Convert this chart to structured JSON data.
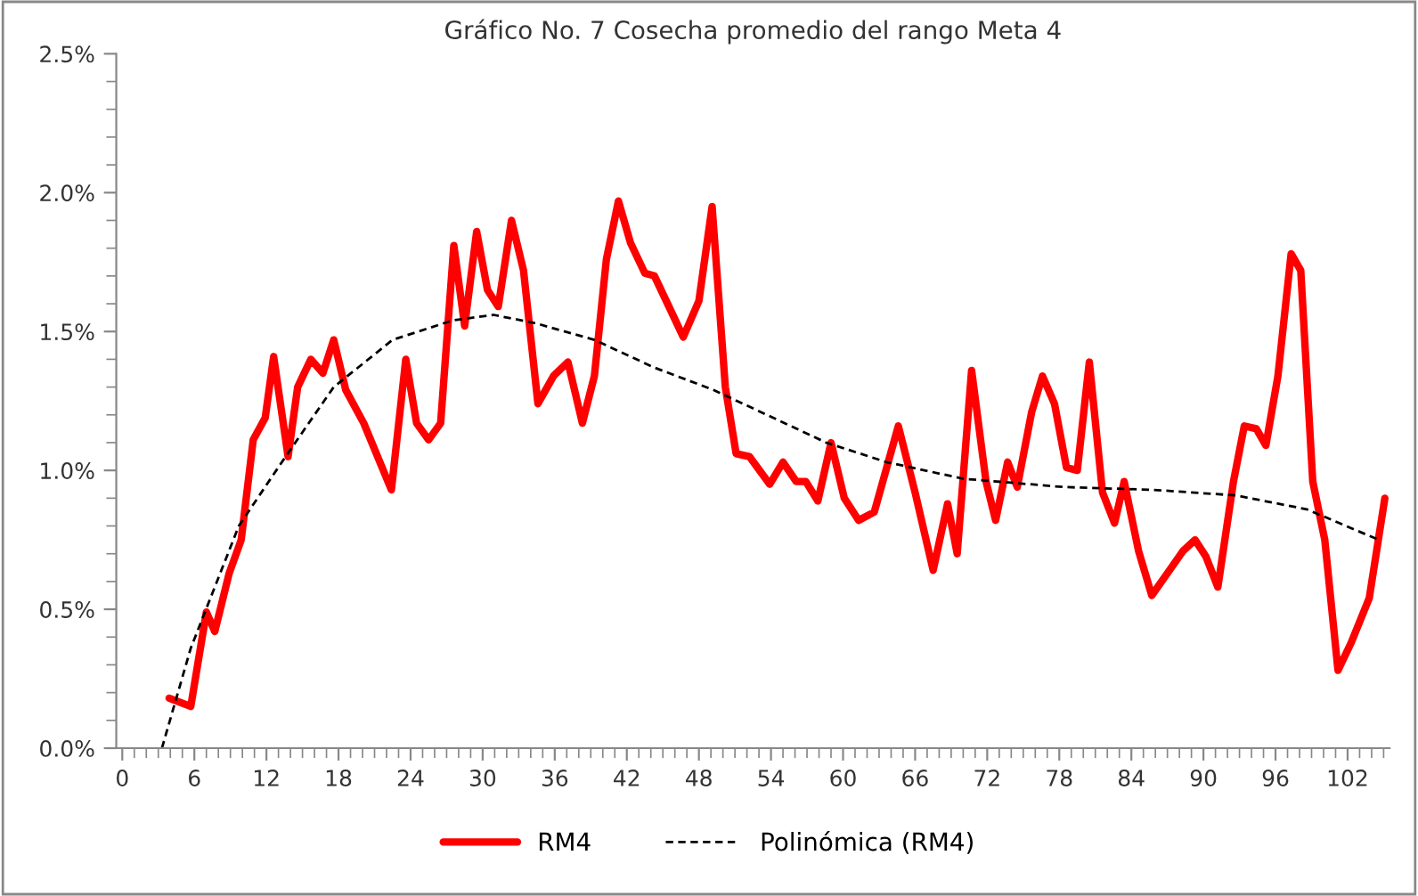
{
  "chart_data": {
    "type": "line",
    "title": "Gráfico No. 7 Cosecha promedio del rango Meta 4",
    "xlim": [
      -0.5,
      105.5
    ],
    "xticks": [
      0,
      6,
      12,
      18,
      24,
      30,
      36,
      42,
      48,
      54,
      60,
      66,
      72,
      78,
      84,
      90,
      96,
      102
    ],
    "ylim": [
      0,
      2.5
    ],
    "yticks": [
      {
        "value": 0,
        "label": "0.0%"
      },
      {
        "value": 0.5,
        "label": "0.5%"
      },
      {
        "value": 1,
        "label": "1.0%"
      },
      {
        "value": 1.5,
        "label": "1.5%"
      },
      {
        "value": 2,
        "label": "2.0%"
      },
      {
        "value": 2.5,
        "label": "2.5%"
      }
    ],
    "grid": false,
    "legend": "bottom",
    "marker": "none",
    "series": [
      {
        "name": "RM4",
        "color": "#ff0000",
        "line_style": "solid",
        "x": [
          3.9,
          5.7,
          7.0,
          7.7,
          8.9,
          9.9,
          10.9,
          11.9,
          12.6,
          13.8,
          14.6,
          15.7,
          16.7,
          17.6,
          18.6,
          20.1,
          22.4,
          23.6,
          24.5,
          25.5,
          26.5,
          27.6,
          28.5,
          29.5,
          30.4,
          31.3,
          32.4,
          33.4,
          34.6,
          35.9,
          37.1,
          38.3,
          39.3,
          40.3,
          41.3,
          42.3,
          43.5,
          44.3,
          45.5,
          46.7,
          48.0,
          49.1,
          50.2,
          51.1,
          52.2,
          53.9,
          55.0,
          56.1,
          56.9,
          57.9,
          59.0,
          60.1,
          61.3,
          62.6,
          64.6,
          66.0,
          67.5,
          68.7,
          69.5,
          70.7,
          71.9,
          72.7,
          73.7,
          74.5,
          75.7,
          76.6,
          77.6,
          78.6,
          79.5,
          80.5,
          81.6,
          82.6,
          83.4,
          84.6,
          85.7,
          87.0,
          88.3,
          89.3,
          90.2,
          91.2,
          92.5,
          93.4,
          94.4,
          95.2,
          96.2,
          97.3,
          98.1,
          99.1,
          100.1,
          101.2,
          102.3,
          103.8,
          105.1
        ],
        "values": [
          0.18,
          0.15,
          0.49,
          0.42,
          0.63,
          0.75,
          1.11,
          1.19,
          1.41,
          1.05,
          1.3,
          1.4,
          1.35,
          1.47,
          1.29,
          1.17,
          0.93,
          1.4,
          1.17,
          1.11,
          1.17,
          1.81,
          1.52,
          1.86,
          1.65,
          1.59,
          1.9,
          1.72,
          1.24,
          1.34,
          1.39,
          1.17,
          1.34,
          1.76,
          1.97,
          1.82,
          1.71,
          1.7,
          1.59,
          1.48,
          1.61,
          1.95,
          1.3,
          1.06,
          1.05,
          0.95,
          1.03,
          0.96,
          0.96,
          0.89,
          1.1,
          0.9,
          0.82,
          0.85,
          1.16,
          0.92,
          0.64,
          0.88,
          0.7,
          1.36,
          0.96,
          0.82,
          1.03,
          0.94,
          1.21,
          1.34,
          1.24,
          1.01,
          1.0,
          1.39,
          0.92,
          0.81,
          0.96,
          0.71,
          0.55,
          0.63,
          0.71,
          0.75,
          0.69,
          0.58,
          0.96,
          1.16,
          1.15,
          1.09,
          1.34,
          1.78,
          1.72,
          0.96,
          0.75,
          0.28,
          0.38,
          0.54,
          0.9
        ]
      },
      {
        "name": "Polinómica (RM4)",
        "color": "#000000",
        "line_style": "dashed",
        "x": [
          3.3,
          5.7,
          9.7,
          13.6,
          17.6,
          22.5,
          27.5,
          30.9,
          34.4,
          39.3,
          44.3,
          49.2,
          58.6,
          63.6,
          70.0,
          78.4,
          85.8,
          92.7,
          98.6,
          104.6
        ],
        "values": [
          0,
          0.36,
          0.8,
          1.05,
          1.3,
          1.47,
          1.54,
          1.56,
          1.53,
          1.47,
          1.37,
          1.29,
          1.1,
          1.03,
          0.97,
          0.94,
          0.93,
          0.91,
          0.86,
          0.75
        ]
      }
    ]
  }
}
